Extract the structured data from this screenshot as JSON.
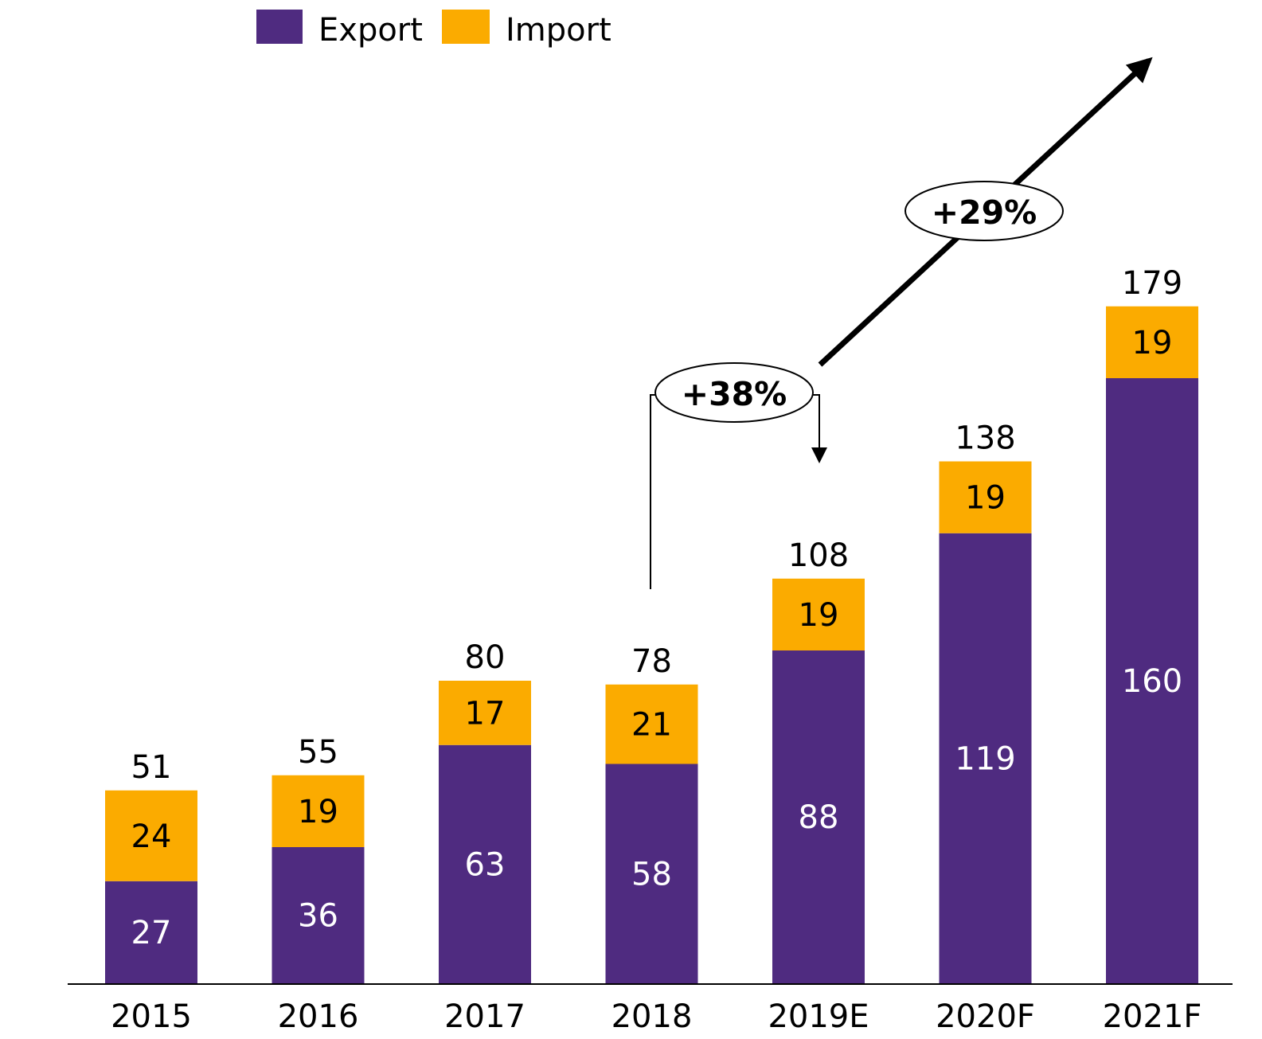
{
  "chart_data": {
    "type": "bar",
    "stacked": true,
    "title": "",
    "xlabel": "",
    "ylabel": "",
    "ylim": [
      0,
      200
    ],
    "categories": [
      "2015",
      "2016",
      "2017",
      "2018",
      "2019E",
      "2020F",
      "2021F"
    ],
    "series": [
      {
        "name": "Export",
        "color": "#4f2b80",
        "values": [
          27,
          36,
          63,
          58,
          88,
          119,
          160
        ]
      },
      {
        "name": "Import",
        "color": "#fbab00",
        "values": [
          24,
          19,
          17,
          21,
          19,
          19,
          19
        ]
      }
    ],
    "totals": [
      51,
      55,
      80,
      78,
      108,
      138,
      179
    ],
    "legend": {
      "position": "top",
      "items": [
        "Export",
        "Import"
      ]
    },
    "annotations": [
      {
        "label": "+38%",
        "from": "2018",
        "to": "2019E"
      },
      {
        "label": "+29%",
        "from": "2019E",
        "to": "2021F"
      }
    ]
  }
}
